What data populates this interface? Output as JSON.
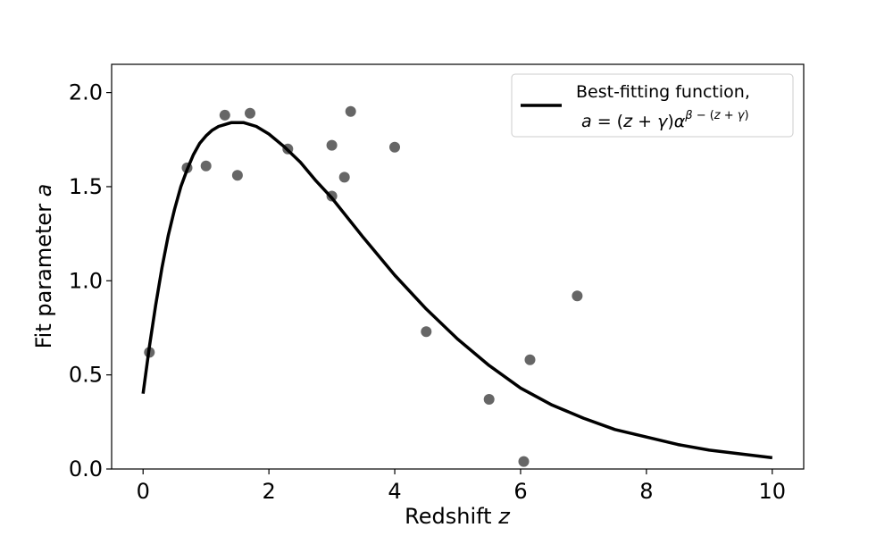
{
  "chart_data": {
    "type": "scatter",
    "title": "",
    "xlabel_prefix": "Redshift ",
    "xlabel_var": "z",
    "ylabel_prefix": "Fit parameter ",
    "ylabel_var": "a",
    "xlim": [
      -0.5,
      10.5
    ],
    "ylim": [
      0.0,
      2.15
    ],
    "xticks": [
      0,
      2,
      4,
      6,
      8,
      10
    ],
    "xtick_labels": [
      "0",
      "2",
      "4",
      "6",
      "8",
      "10"
    ],
    "yticks": [
      0.0,
      0.5,
      1.0,
      1.5,
      2.0
    ],
    "ytick_labels": [
      "0.0",
      "0.5",
      "1.0",
      "1.5",
      "2.0"
    ],
    "grid": false,
    "legend_position": "top-right",
    "point_color": "#555555",
    "line_color": "#000000",
    "points": {
      "x": [
        0.1,
        0.7,
        1.0,
        1.3,
        1.5,
        1.7,
        2.3,
        3.0,
        3.0,
        3.2,
        3.3,
        4.0,
        4.5,
        5.5,
        6.05,
        6.15,
        6.9
      ],
      "y": [
        0.62,
        1.6,
        1.61,
        1.88,
        1.56,
        1.89,
        1.7,
        1.72,
        1.45,
        1.55,
        1.9,
        1.71,
        0.73,
        0.37,
        0.04,
        0.58,
        0.92
      ]
    },
    "fit_curve": {
      "x": [
        0.0,
        0.1,
        0.2,
        0.3,
        0.4,
        0.5,
        0.6,
        0.7,
        0.8,
        0.9,
        1.0,
        1.1,
        1.2,
        1.3,
        1.4,
        1.5,
        1.6,
        1.8,
        2.0,
        2.25,
        2.5,
        2.75,
        3.0,
        3.5,
        4.0,
        4.5,
        5.0,
        5.5,
        6.0,
        6.5,
        7.0,
        7.5,
        8.0,
        8.5,
        9.0,
        9.5,
        10.0
      ],
      "y": [
        0.4,
        0.65,
        0.87,
        1.07,
        1.24,
        1.38,
        1.5,
        1.59,
        1.67,
        1.73,
        1.77,
        1.8,
        1.82,
        1.83,
        1.84,
        1.84,
        1.84,
        1.82,
        1.78,
        1.71,
        1.63,
        1.53,
        1.44,
        1.23,
        1.03,
        0.85,
        0.69,
        0.55,
        0.43,
        0.34,
        0.27,
        0.21,
        0.17,
        0.13,
        0.1,
        0.08,
        0.06
      ]
    },
    "legend": {
      "label_line1": "Best-fitting function,",
      "formula_a": "a",
      "formula_eq": " = (",
      "formula_z": "z",
      "formula_plus": " + ",
      "formula_gamma": "γ",
      "formula_close": ")",
      "formula_alpha": "α",
      "formula_exp_beta": "β",
      "formula_exp_minus": " − (",
      "formula_exp_z": "z",
      "formula_exp_plus": " + ",
      "formula_exp_gamma": "γ",
      "formula_exp_close": ")"
    }
  }
}
